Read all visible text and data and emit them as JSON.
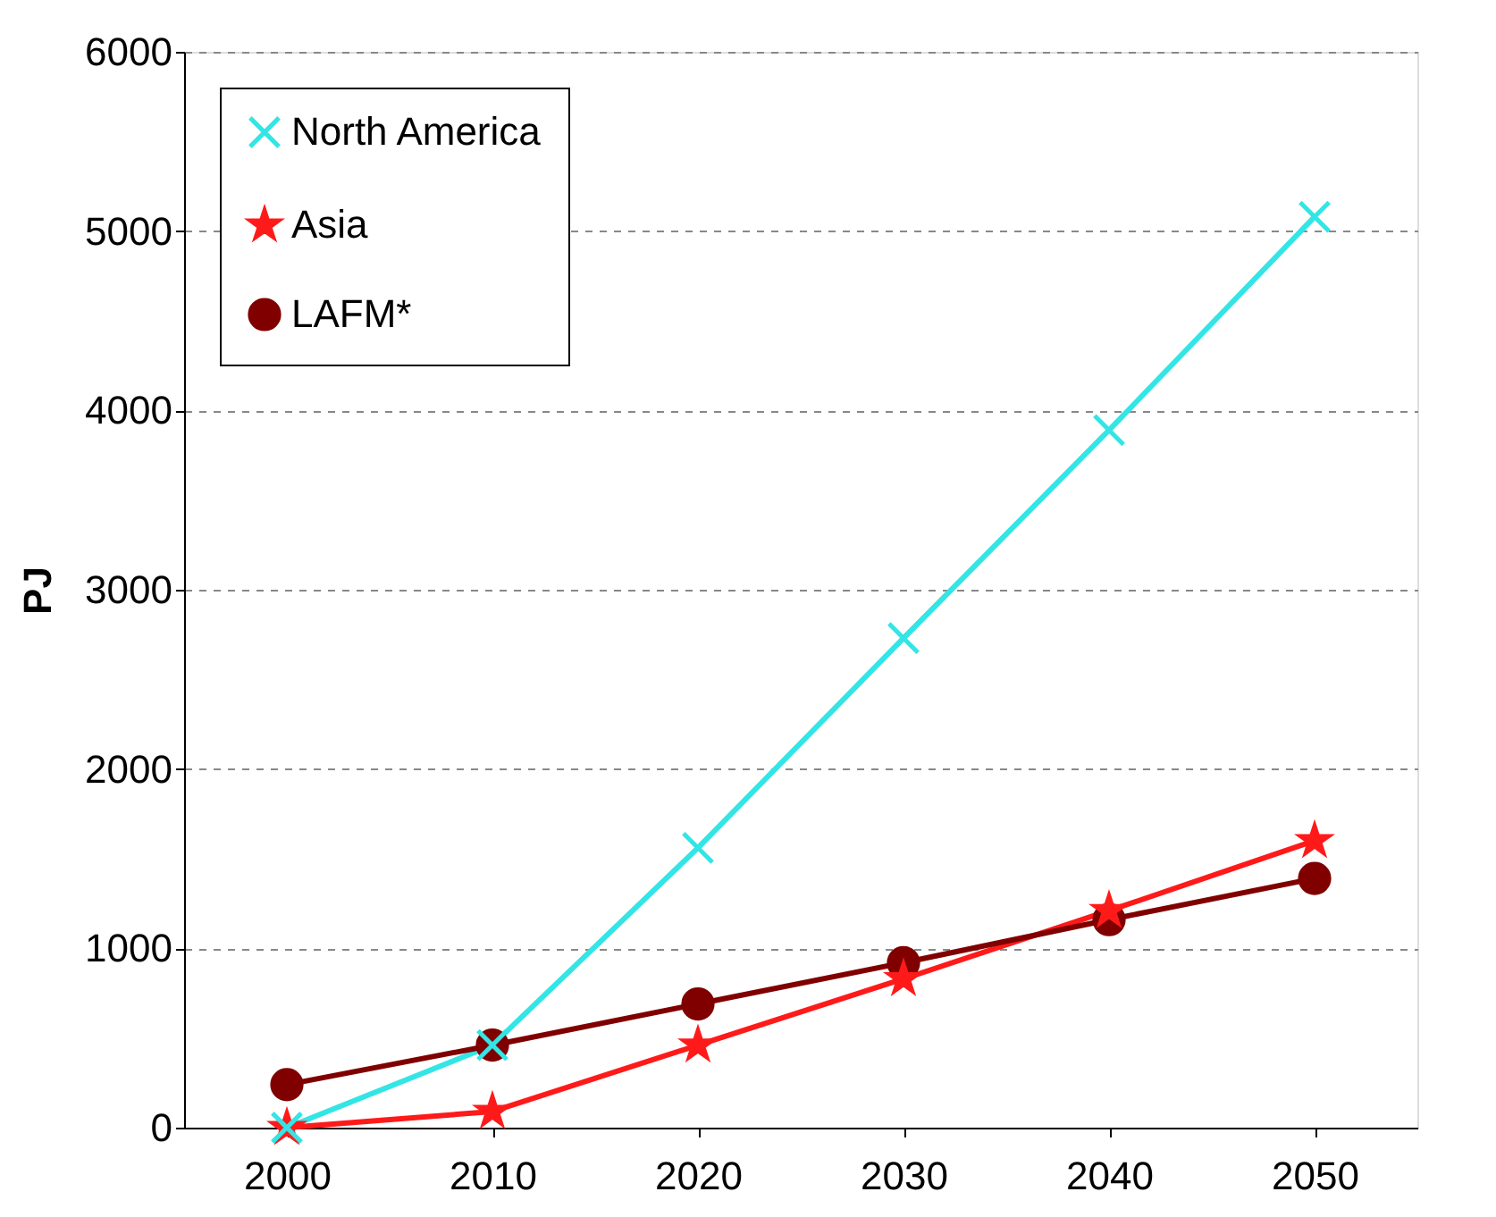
{
  "chart_data": {
    "type": "line",
    "ylabel": "PJ",
    "categories": [
      "2000",
      "2010",
      "2020",
      "2030",
      "2040",
      "2050"
    ],
    "series": [
      {
        "name": "North America",
        "color": "#33e5e5",
        "marker": "cross",
        "values": [
          0,
          460,
          1560,
          2730,
          3890,
          5080
        ]
      },
      {
        "name": "Asia",
        "color": "#ff1a1a",
        "marker": "star",
        "values": [
          0,
          90,
          460,
          830,
          1210,
          1600
        ]
      },
      {
        "name": "LAFM*",
        "color": "#800000",
        "marker": "circle",
        "values": [
          240,
          460,
          690,
          920,
          1160,
          1390
        ]
      }
    ],
    "ylim": [
      0,
      6000
    ],
    "yticks": [
      0,
      1000,
      2000,
      3000,
      4000,
      5000,
      6000
    ],
    "grid": "y",
    "legend": "top left",
    "line_style": "solid"
  }
}
